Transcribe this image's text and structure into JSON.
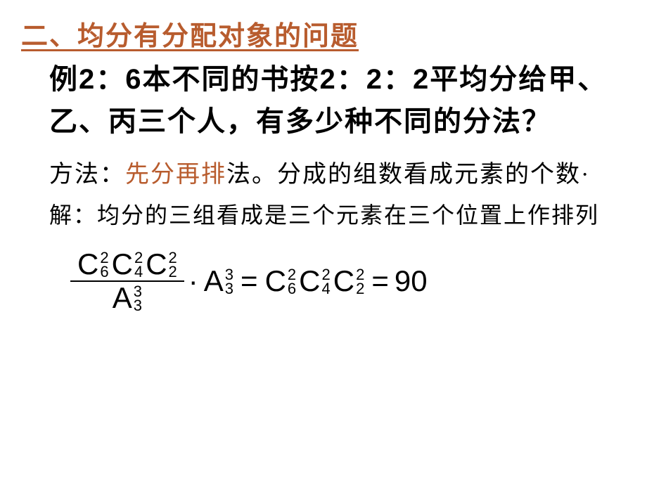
{
  "section": {
    "title": "二、均分有分配对象的问题"
  },
  "example": {
    "text": "例2：6本不同的书按2：2：2平均分给甲、乙、丙三个人，有多少种不同的分法？"
  },
  "method": {
    "prefix": "方法：",
    "highlight": "先分再排",
    "suffix": "法。分成的组数看成元素的个数·"
  },
  "solution": {
    "text": "解：均分的三组看成是三个元素在三个位置上作排列"
  },
  "formula": {
    "fraction_top": {
      "c1": {
        "letter": "C",
        "sup": "2",
        "sub": "6"
      },
      "c2": {
        "letter": "C",
        "sup": "2",
        "sub": "4"
      },
      "c3": {
        "letter": "C",
        "sup": "2",
        "sub": "2"
      }
    },
    "fraction_bottom": {
      "a1": {
        "letter": "A",
        "sup": "3",
        "sub": "3"
      }
    },
    "dot": "·",
    "mult": {
      "a2": {
        "letter": "A",
        "sup": "3",
        "sub": "3"
      }
    },
    "equals1": "=",
    "right": {
      "c4": {
        "letter": "C",
        "sup": "2",
        "sub": "6"
      },
      "c5": {
        "letter": "C",
        "sup": "2",
        "sub": "4"
      },
      "c6": {
        "letter": "C",
        "sup": "2",
        "sub": "2"
      }
    },
    "equals2": "=",
    "result": "90"
  },
  "colors": {
    "heading": "#b85c2e",
    "text": "#000000",
    "background": "#ffffff"
  }
}
